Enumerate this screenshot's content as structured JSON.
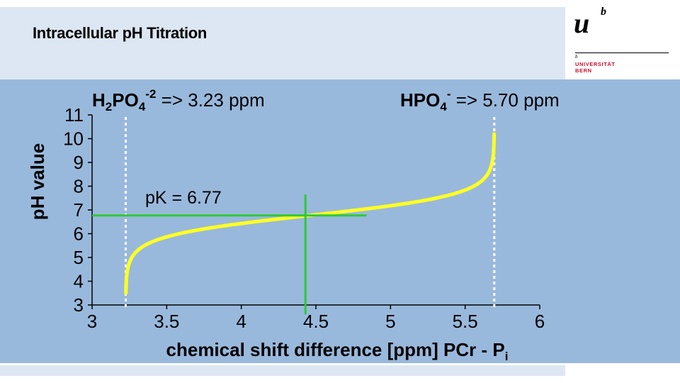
{
  "slide": {
    "title": "Intracellular pH Titration"
  },
  "logo": {
    "mark": "u",
    "superscript": "b",
    "small_mark": "b",
    "line1": "UNIVERSITÄT",
    "line2": "BERN"
  },
  "colors": {
    "header_bg": "#dde7f3",
    "panel_bg": "#99b9dc",
    "curve": "#ffff22",
    "guide": "#2ec935",
    "brand": "#c8102e"
  },
  "chart_data": {
    "type": "line",
    "title": "",
    "xlabel": "chemical shift difference [ppm] PCr - Pi",
    "xlabel_main": "chemical shift difference [ppm] PCr - P",
    "xlabel_sub": "i",
    "ylabel": "pH value",
    "xlim": [
      3,
      6
    ],
    "ylim": [
      3,
      11
    ],
    "x_ticks": [
      3,
      3.5,
      4,
      4.5,
      5,
      5.5,
      6
    ],
    "x_tick_labels": [
      "3",
      "3.5",
      "4",
      "4.5",
      "5",
      "5.5",
      "6"
    ],
    "y_ticks": [
      3,
      4,
      5,
      6,
      7,
      8,
      9,
      10,
      11
    ],
    "y_tick_labels": [
      "3",
      "4",
      "5",
      "6",
      "7",
      "8",
      "9",
      "10",
      "11"
    ],
    "pK": 6.77,
    "delta_acid": 3.23,
    "delta_base": 5.7,
    "pK_x": 4.43,
    "pK_hline_x_end": 4.84,
    "pK_vline_y_range": [
      2.6,
      7.65
    ],
    "curve_y_range": [
      3.5,
      10.2
    ],
    "series": [
      {
        "name": "titration curve",
        "color": "#ffff22"
      }
    ],
    "annotations": {
      "pk_label": "pK = 6.77",
      "acid_main": "H",
      "acid_sub1": "2",
      "acid_mid": "PO",
      "acid_sub2": "4",
      "acid_sup": "-2",
      "acid_rest": " => 3.23 ppm",
      "base_main": "HPO",
      "base_sub": "4",
      "base_sup": "-",
      "base_rest": " => 5.70 ppm"
    }
  }
}
